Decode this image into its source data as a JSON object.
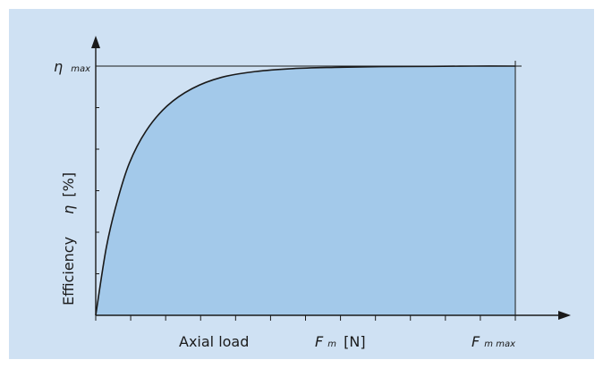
{
  "chart_data": {
    "type": "area",
    "ylabel_name": "Efficiency",
    "ylabel_symbol": "η",
    "ylabel_unit": "[%]",
    "y_max_label": {
      "symbol": "η",
      "subscript": "max"
    },
    "xlabel_name": "Axial load",
    "x_mid_label": {
      "symbol": "F",
      "subscript": "m",
      "unit": "[N]"
    },
    "x_max_label": {
      "symbol": "F",
      "subscript": "m max"
    },
    "x": [
      0,
      0.025,
      0.05,
      0.08,
      0.12,
      0.17,
      0.23,
      0.3,
      0.38,
      0.47,
      0.57,
      0.68,
      0.8,
      0.9,
      1.0
    ],
    "y": [
      0,
      0.27,
      0.45,
      0.61,
      0.74,
      0.84,
      0.91,
      0.955,
      0.978,
      0.99,
      0.995,
      0.998,
      0.999,
      1.0,
      1.0
    ],
    "xlim": [
      0,
      1
    ],
    "ylim": [
      0,
      1
    ],
    "x_tick_count": 12,
    "y_tick_count": 6,
    "grid": false,
    "colors": {
      "fill": "#a3c9ea",
      "panel": "#cfe1f3",
      "line": "#1a1a1a"
    }
  }
}
